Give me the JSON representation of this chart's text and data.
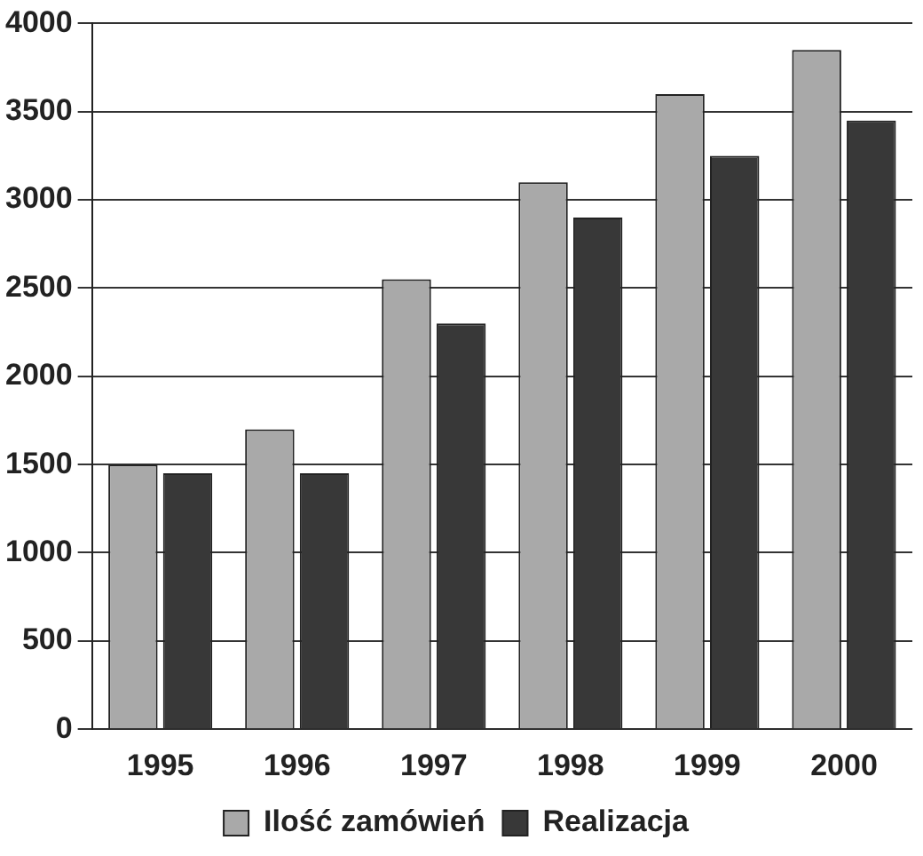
{
  "chart_data": {
    "type": "bar",
    "categories": [
      "1995",
      "1996",
      "1997",
      "1998",
      "1999",
      "2000"
    ],
    "series": [
      {
        "name": "Ilość zamówień",
        "color": "#a9a9a9",
        "values": [
          1500,
          1700,
          2550,
          3100,
          3600,
          3850
        ]
      },
      {
        "name": "Realizacja",
        "color": "#383838",
        "values": [
          1450,
          1450,
          2300,
          2900,
          3250,
          3450
        ]
      }
    ],
    "ylim": [
      0,
      4000
    ],
    "yticks": [
      0,
      500,
      1000,
      1500,
      2000,
      2500,
      3000,
      3500,
      4000
    ],
    "grid": "y",
    "legend": "bottom"
  }
}
